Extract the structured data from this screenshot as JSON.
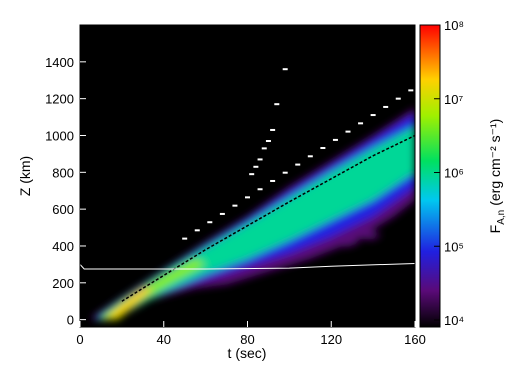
{
  "chart_data": {
    "type": "heatmap",
    "xlabel": "t (sec)",
    "ylabel": "Z (km)",
    "xlim": [
      0,
      160
    ],
    "xticks": [
      0,
      40,
      80,
      120,
      160
    ],
    "ylim": [
      -40,
      1600
    ],
    "yticks": [
      0,
      200,
      400,
      600,
      800,
      1000,
      1200,
      1400
    ],
    "colorbar": {
      "scale": "log",
      "clim": [
        10000,
        100000000
      ],
      "ticks": [
        {
          "value": 10000,
          "label": "10⁴"
        },
        {
          "value": 100000,
          "label": "10⁵"
        },
        {
          "value": 1000000,
          "label": "10⁶"
        },
        {
          "value": 10000000,
          "label": "10⁷"
        },
        {
          "value": 100000000,
          "label": "10⁸"
        }
      ],
      "label_main": "F",
      "label_sub": "A,n",
      "label_unit": "(erg cm⁻² s⁻¹)"
    },
    "contours": [
      {
        "level": 30000,
        "x": [
          5,
          12,
          30,
          55,
          70,
          90,
          110,
          130,
          150,
          160,
          160,
          140,
          120,
          100,
          80,
          60,
          40,
          20,
          8
        ],
        "y": [
          0,
          0,
          100,
          170,
          190,
          260,
          330,
          420,
          560,
          650,
          1150,
          1000,
          860,
          720,
          560,
          420,
          270,
          120,
          30
        ]
      },
      {
        "level": 30000,
        "x": [
          120,
          128,
          134,
          130,
          122
        ],
        "y": [
          400,
          395,
          420,
          445,
          430
        ]
      },
      {
        "level": 30000,
        "x": [
          132,
          140,
          144,
          140,
          133
        ],
        "y": [
          440,
          435,
          460,
          480,
          470
        ]
      },
      {
        "level": 100000,
        "x": [
          7,
          14,
          35,
          60,
          80,
          100,
          120,
          140,
          160,
          160,
          140,
          120,
          100,
          80,
          60,
          40,
          20,
          9
        ],
        "y": [
          0,
          0,
          120,
          220,
          290,
          360,
          450,
          560,
          720,
          1120,
          980,
          840,
          700,
          550,
          410,
          265,
          115,
          25
        ]
      },
      {
        "level": 1000000,
        "x": [
          9,
          16,
          40,
          60,
          80,
          100,
          120,
          140,
          160,
          160,
          140,
          120,
          100,
          80,
          60,
          40,
          20,
          10
        ],
        "y": [
          0,
          0,
          150,
          250,
          330,
          430,
          540,
          650,
          800,
          1050,
          930,
          800,
          660,
          520,
          390,
          255,
          105,
          20
        ]
      },
      {
        "level": 5000000,
        "x": [
          10,
          18,
          30,
          45,
          60,
          55,
          40,
          25,
          12
        ],
        "y": [
          0,
          0,
          110,
          210,
          300,
          330,
          240,
          140,
          30
        ]
      },
      {
        "level": 20000000,
        "x": [
          12,
          18,
          28,
          35,
          30,
          20
        ],
        "y": [
          5,
          10,
          100,
          170,
          170,
          80
        ]
      }
    ],
    "ridge": {
      "color": "#000000",
      "x": [
        20,
        60,
        100,
        140,
        160
      ],
      "y": [
        100,
        380,
        640,
        890,
        1000
      ]
    },
    "transition": {
      "color": "#ffffff",
      "x": [
        0,
        2,
        60,
        100,
        120,
        160
      ],
      "y": [
        300,
        275,
        275,
        280,
        290,
        305
      ]
    },
    "front": {
      "color": "#ffffff",
      "x": [
        50,
        56,
        62,
        68,
        74,
        80,
        86,
        92,
        98,
        104,
        110,
        116,
        122,
        128,
        134,
        140,
        146,
        152,
        158,
        82,
        84,
        86,
        88,
        90,
        92,
        94,
        98
      ],
      "y": [
        440,
        485,
        529,
        574,
        619,
        664,
        708,
        753,
        798,
        842,
        887,
        932,
        976,
        1021,
        1066,
        1111,
        1155,
        1200,
        1245,
        790,
        830,
        870,
        930,
        970,
        1030,
        1170,
        1360
      ]
    }
  }
}
